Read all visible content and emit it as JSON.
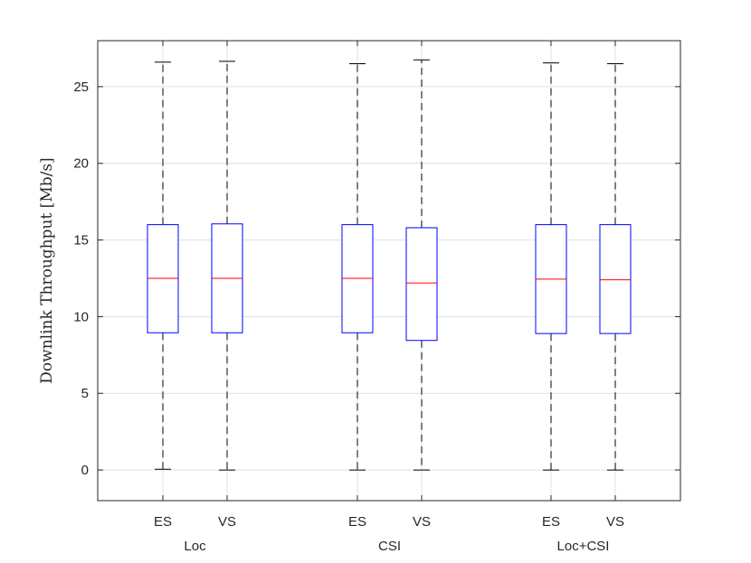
{
  "chart_data": {
    "type": "box",
    "ylabel": "Downlink Throughput [Mb/s]",
    "ylim": [
      -2,
      28
    ],
    "yticks": [
      0,
      5,
      10,
      15,
      20,
      25
    ],
    "grid": true,
    "groups": [
      "Loc",
      "CSI",
      "Loc+CSI"
    ],
    "categories": [
      "ES",
      "VS",
      "ES",
      "VS",
      "ES",
      "VS"
    ],
    "boxes": [
      {
        "label": "ES",
        "group": "Loc",
        "whisker_low": 0.05,
        "q1": 8.95,
        "median": 12.5,
        "q3": 16.0,
        "whisker_high": 26.6
      },
      {
        "label": "VS",
        "group": "Loc",
        "whisker_low": 0.0,
        "q1": 8.95,
        "median": 12.5,
        "q3": 16.05,
        "whisker_high": 26.65
      },
      {
        "label": "ES",
        "group": "CSI",
        "whisker_low": 0.0,
        "q1": 8.95,
        "median": 12.5,
        "q3": 16.0,
        "whisker_high": 26.5
      },
      {
        "label": "VS",
        "group": "CSI",
        "whisker_low": 0.0,
        "q1": 8.45,
        "median": 12.2,
        "q3": 15.8,
        "whisker_high": 26.75
      },
      {
        "label": "ES",
        "group": "Loc+CSI",
        "whisker_low": 0.0,
        "q1": 8.9,
        "median": 12.45,
        "q3": 16.0,
        "whisker_high": 26.55
      },
      {
        "label": "VS",
        "group": "Loc+CSI",
        "whisker_low": 0.0,
        "q1": 8.9,
        "median": 12.4,
        "q3": 16.0,
        "whisker_high": 26.5
      }
    ],
    "colors": {
      "box": "#0000ff",
      "median": "#ff0000",
      "whisker": "#000000",
      "grid": "#e0e0e0",
      "axis": "#262626"
    }
  }
}
